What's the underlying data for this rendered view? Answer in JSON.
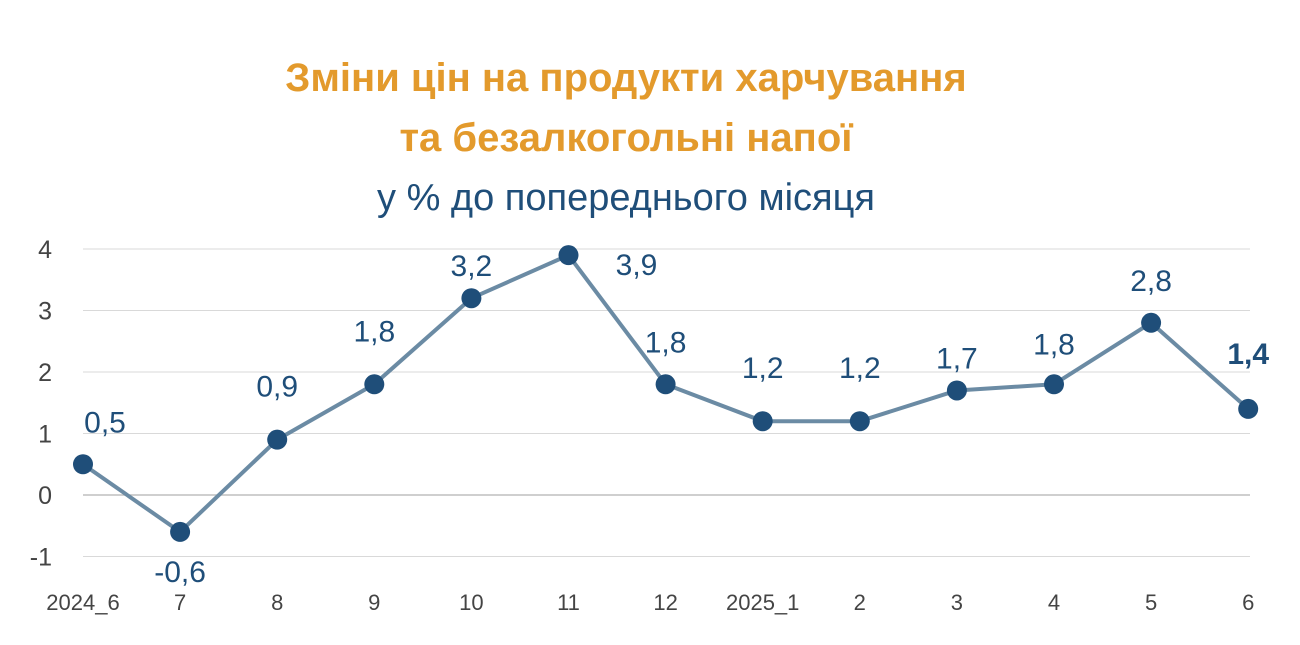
{
  "colors": {
    "title": "#E39A2C",
    "subtitle": "#1F4E79",
    "line": "#6B8BA4",
    "marker": "#1F4E79",
    "label": "#1F4E79",
    "grid": "#D9D9D9",
    "axis": "#BFBFBF"
  },
  "chart_data": {
    "type": "line",
    "title": [
      "Зміни цін на продукти харчування",
      "та безалкогольні напої"
    ],
    "subtitle": "у % до попереднього місяця",
    "categories": [
      "2024_6",
      "7",
      "8",
      "9",
      "10",
      "11",
      "12",
      "2025_1",
      "2",
      "3",
      "4",
      "5",
      "6"
    ],
    "values": [
      0.5,
      -0.6,
      0.9,
      1.8,
      3.2,
      3.9,
      1.8,
      1.2,
      1.2,
      1.7,
      1.8,
      2.8,
      1.4
    ],
    "data_labels": [
      "0,5",
      "-0,6",
      "0,9",
      "1,8",
      "3,2",
      "3,9",
      "1,8",
      "1,2",
      "1,2",
      "1,7",
      "1,8",
      "2,8",
      "1,4"
    ],
    "label_bold_last": true,
    "y_ticks": [
      "-1",
      "0",
      "1",
      "2",
      "3",
      "4"
    ],
    "ylim": [
      -1,
      4
    ],
    "grid": true,
    "legend": "none"
  }
}
